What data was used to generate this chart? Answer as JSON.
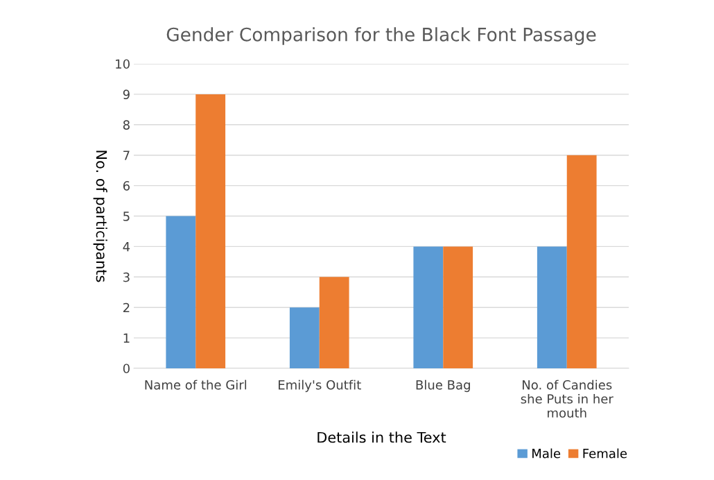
{
  "chart_data": {
    "type": "bar",
    "title": "Gender Comparison for the Black Font Passage",
    "xlabel": "Details in the Text",
    "ylabel": "No. of participants",
    "categories": [
      "Name of the Girl",
      "Emily's Outfit",
      "Blue Bag",
      "No. of Candies she Puts in her mouth"
    ],
    "series": [
      {
        "name": "Male",
        "color": "#5b9bd5",
        "values": [
          5,
          2,
          4,
          4
        ]
      },
      {
        "name": "Female",
        "color": "#ed7d31",
        "values": [
          9,
          3,
          4,
          7
        ]
      }
    ],
    "ylim": [
      0,
      10
    ],
    "yticks": [
      0,
      1,
      2,
      3,
      4,
      5,
      6,
      7,
      8,
      9,
      10
    ],
    "grid": "y",
    "legend": "bottom right"
  }
}
